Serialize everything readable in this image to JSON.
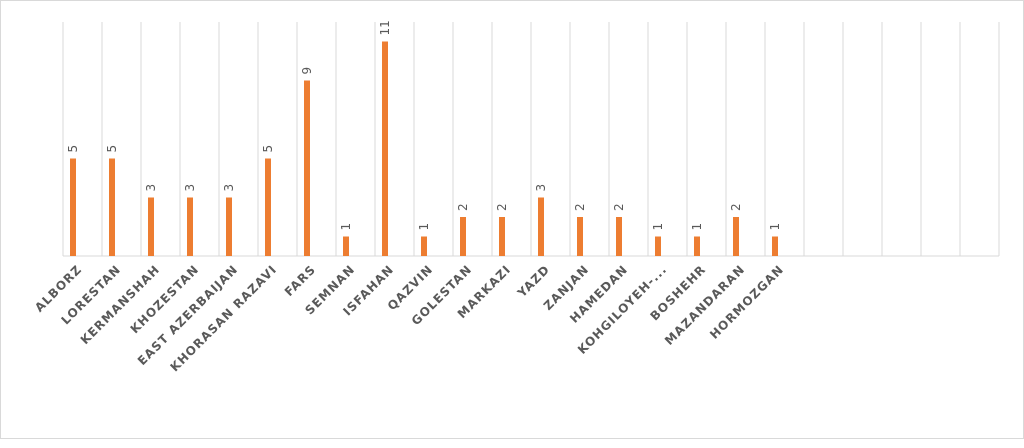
{
  "chart_data": {
    "type": "bar",
    "categories": [
      "ALBORZ",
      "LORESTAN",
      "KERMANSHAH",
      "KHOZESTAN",
      "EAST AZERBAIJAN",
      "KHORASAN RAZAVI",
      "FARS",
      "SEMNAN",
      "ISFAHAN",
      "QAZVIN",
      "GOLESTAN",
      "MARKAZI",
      "YAZD",
      "ZANJAN",
      "HAMEDAN",
      "KOHGILOYEH-...",
      "BOSHEHR",
      "MAZANDARAN",
      "HORMOZGAN",
      null,
      null,
      null,
      null,
      null
    ],
    "values": [
      5,
      5,
      3,
      3,
      3,
      5,
      9,
      1,
      11,
      1,
      2,
      2,
      3,
      2,
      2,
      1,
      1,
      2,
      1,
      null,
      null,
      null,
      null,
      null
    ],
    "color": "#ed7d31",
    "ylim": [
      0,
      12
    ],
    "grid": true
  }
}
